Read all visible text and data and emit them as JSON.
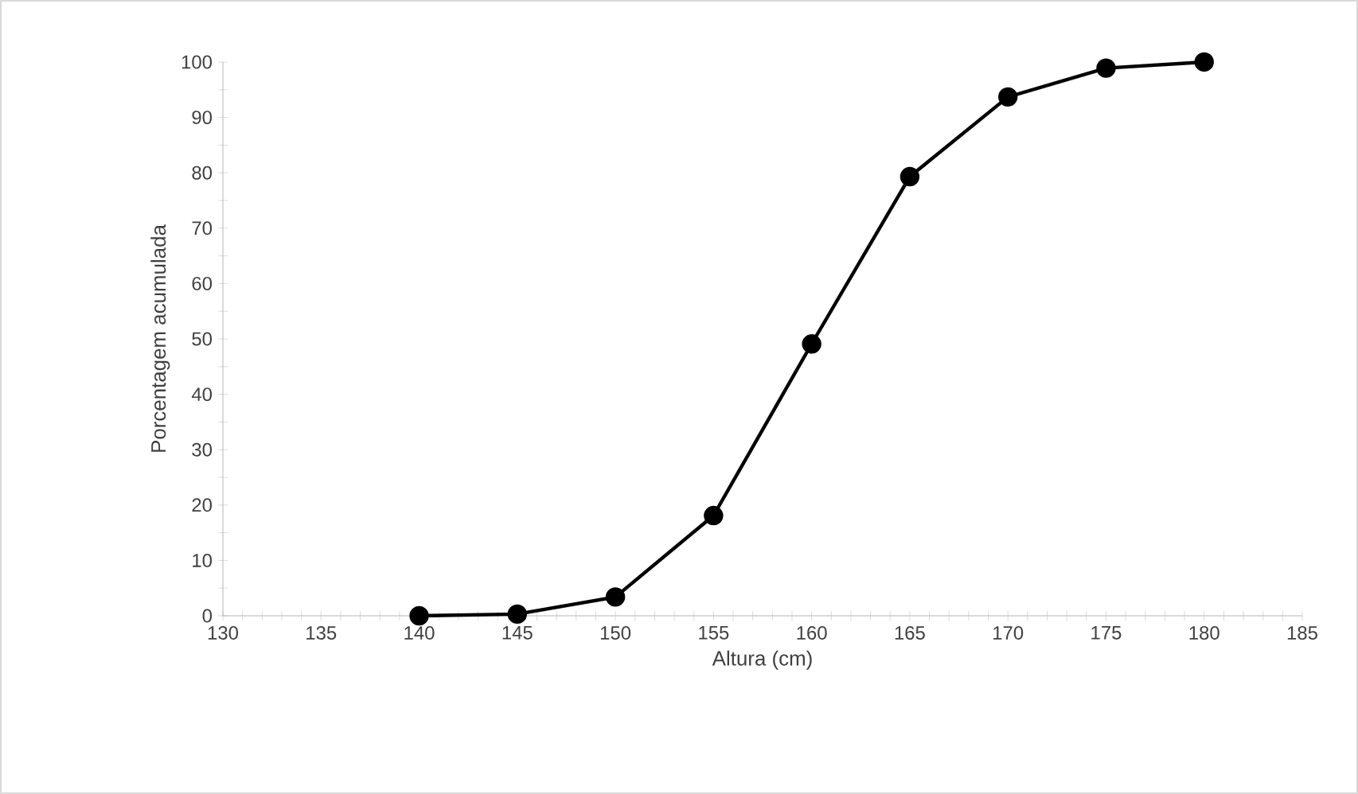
{
  "chart_data": {
    "type": "line",
    "xlabel": "Altura (cm)",
    "ylabel": "Porcentagem acumulada",
    "x": [
      140,
      145,
      150,
      155,
      160,
      165,
      170,
      175,
      180
    ],
    "values": [
      0,
      0.3,
      3.4,
      18.1,
      49.1,
      79.3,
      93.7,
      98.9,
      100
    ],
    "color": "#000000",
    "marker": "circle",
    "line_style": "solid",
    "xlim": [
      130,
      185
    ],
    "ylim": [
      0,
      100
    ],
    "xticks": [
      130,
      135,
      140,
      145,
      150,
      155,
      160,
      165,
      170,
      175,
      180,
      185
    ],
    "yticks": [
      0,
      10,
      20,
      30,
      40,
      50,
      60,
      70,
      80,
      90,
      100
    ]
  }
}
